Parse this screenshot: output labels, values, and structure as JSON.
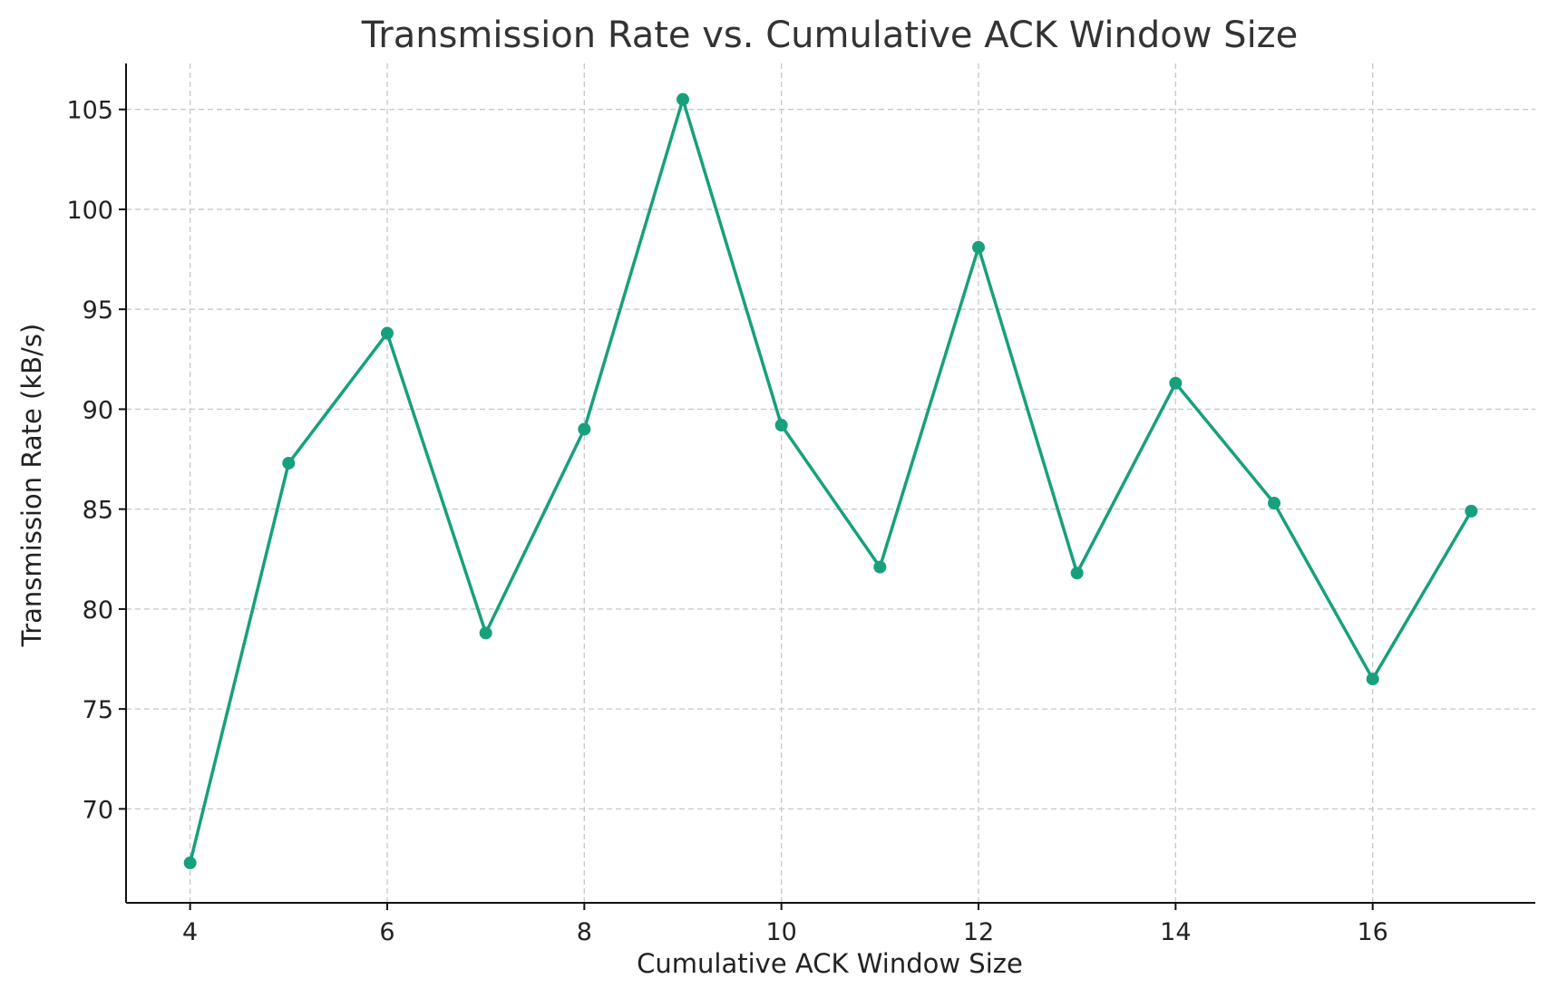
{
  "chart_data": {
    "type": "line",
    "title": "Transmission Rate vs. Cumulative ACK Window Size",
    "xlabel": "Cumulative ACK Window Size",
    "ylabel": "Transmission Rate (kB/s)",
    "x": [
      4,
      5,
      6,
      7,
      8,
      9,
      10,
      11,
      12,
      13,
      14,
      15,
      16,
      17
    ],
    "series": [
      {
        "values": [
          67.3,
          87.3,
          93.8,
          78.8,
          89.0,
          105.5,
          89.2,
          82.1,
          98.1,
          81.8,
          91.3,
          85.3,
          76.5,
          84.9
        ],
        "color": "#17a07c"
      }
    ],
    "xlim": [
      3.35,
      17.65
    ],
    "ylim": [
      65.3,
      107.3
    ],
    "xticks": [
      4,
      6,
      8,
      10,
      12,
      14,
      16
    ],
    "yticks": [
      70,
      75,
      80,
      85,
      90,
      95,
      100,
      105
    ],
    "grid": true,
    "legend": "none"
  }
}
